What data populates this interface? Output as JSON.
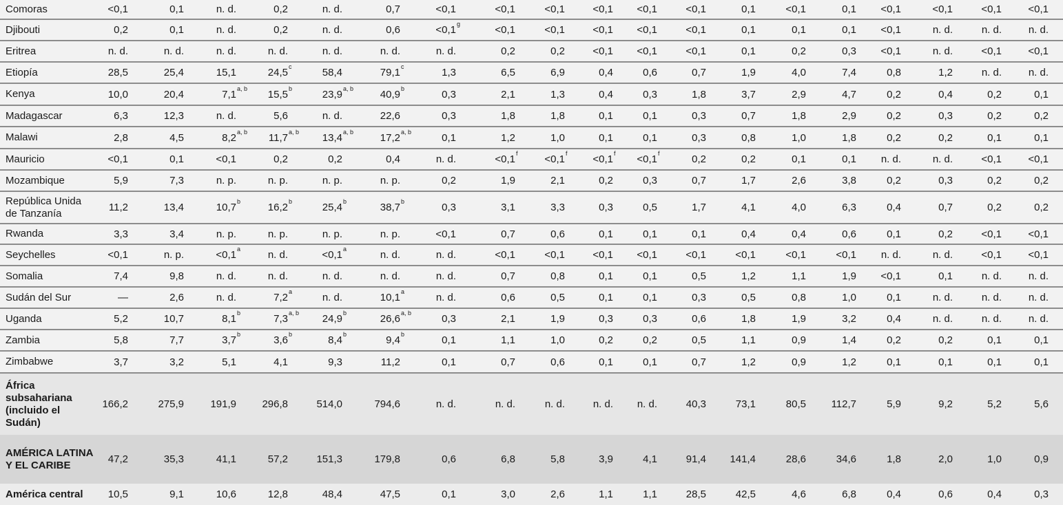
{
  "rows": [
    {
      "label": "Comoras",
      "cells": [
        "<0,1",
        "0,1",
        "n. d.",
        "0,2",
        "n. d.",
        "0,7",
        "<0,1",
        "<0,1",
        "<0,1",
        "<0,1",
        "<0,1",
        "<0,1",
        "0,1",
        "<0,1",
        "0,1",
        "<0,1",
        "<0,1",
        "<0,1",
        "<0,1"
      ]
    },
    {
      "label": "Djibouti",
      "cells": [
        "0,2",
        "0,1",
        "n. d.",
        "0,2",
        "n. d.",
        "0,6",
        {
          "v": "<0,1",
          "sup": "g"
        },
        "<0,1",
        "<0,1",
        "<0,1",
        "<0,1",
        "<0,1",
        "0,1",
        "0,1",
        "0,1",
        "<0,1",
        "n. d.",
        "n. d.",
        "n. d."
      ]
    },
    {
      "label": "Eritrea",
      "cells": [
        "n. d.",
        "n. d.",
        "n. d.",
        "n. d.",
        "n. d.",
        "n. d.",
        "n. d.",
        "0,2",
        "0,2",
        "<0,1",
        "<0,1",
        "<0,1",
        "0,1",
        "0,2",
        "0,3",
        "<0,1",
        "n. d.",
        "<0,1",
        "<0,1"
      ]
    },
    {
      "label": "Etiopía",
      "cells": [
        "28,5",
        "25,4",
        "15,1",
        {
          "v": "24,5",
          "sup": "c"
        },
        "58,4",
        {
          "v": "79,1",
          "sup": "c"
        },
        "1,3",
        "6,5",
        "6,9",
        "0,4",
        "0,6",
        "0,7",
        "1,9",
        "4,0",
        "7,4",
        "0,8",
        "1,2",
        "n. d.",
        "n. d."
      ]
    },
    {
      "label": "Kenya",
      "cells": [
        "10,0",
        "20,4",
        {
          "v": "7,1",
          "sup": "a, b"
        },
        {
          "v": "15,5",
          "sup": "b"
        },
        {
          "v": "23,9",
          "sup": "a, b"
        },
        {
          "v": "40,9",
          "sup": "b"
        },
        "0,3",
        "2,1",
        "1,3",
        "0,4",
        "0,3",
        "1,8",
        "3,7",
        "2,9",
        "4,7",
        "0,2",
        "0,4",
        "0,2",
        "0,1"
      ]
    },
    {
      "label": "Madagascar",
      "cells": [
        "6,3",
        "12,3",
        "n. d.",
        "5,6",
        "n. d.",
        "22,6",
        "0,3",
        "1,8",
        "1,8",
        "0,1",
        "0,1",
        "0,3",
        "0,7",
        "1,8",
        "2,9",
        "0,2",
        "0,3",
        "0,2",
        "0,2"
      ]
    },
    {
      "label": "Malawi",
      "cells": [
        "2,8",
        "4,5",
        {
          "v": "8,2",
          "sup": "a, b"
        },
        {
          "v": "11,7",
          "sup": "a, b"
        },
        {
          "v": "13,4",
          "sup": "a, b"
        },
        {
          "v": "17,2",
          "sup": "a, b"
        },
        "0,1",
        "1,2",
        "1,0",
        "0,1",
        "0,1",
        "0,3",
        "0,8",
        "1,0",
        "1,8",
        "0,2",
        "0,2",
        "0,1",
        "0,1"
      ]
    },
    {
      "label": "Mauricio",
      "cells": [
        "<0,1",
        "0,1",
        "<0,1",
        "0,2",
        "0,2",
        "0,4",
        "n. d.",
        {
          "v": "<0,1",
          "sup": "f"
        },
        {
          "v": "<0,1",
          "sup": "f"
        },
        {
          "v": "<0,1",
          "sup": "f"
        },
        {
          "v": "<0,1",
          "sup": "f"
        },
        "0,2",
        "0,2",
        "0,1",
        "0,1",
        "n. d.",
        "n. d.",
        "<0,1",
        "<0,1"
      ]
    },
    {
      "label": "Mozambique",
      "cells": [
        "5,9",
        "7,3",
        "n. p.",
        "n. p.",
        "n. p.",
        "n. p.",
        "0,2",
        "1,9",
        "2,1",
        "0,2",
        "0,3",
        "0,7",
        "1,7",
        "2,6",
        "3,8",
        "0,2",
        "0,3",
        "0,2",
        "0,2"
      ]
    },
    {
      "label": "República Unida de Tanzanía",
      "cells": [
        "11,2",
        "13,4",
        {
          "v": "10,7",
          "sup": "b"
        },
        {
          "v": "16,2",
          "sup": "b"
        },
        {
          "v": "25,4",
          "sup": "b"
        },
        {
          "v": "38,7",
          "sup": "b"
        },
        "0,3",
        "3,1",
        "3,3",
        "0,3",
        "0,5",
        "1,7",
        "4,1",
        "4,0",
        "6,3",
        "0,4",
        "0,7",
        "0,2",
        "0,2"
      ]
    },
    {
      "label": "Rwanda",
      "cells": [
        "3,3",
        "3,4",
        "n. p.",
        "n. p.",
        "n. p.",
        "n. p.",
        "<0,1",
        "0,7",
        "0,6",
        "0,1",
        "0,1",
        "0,1",
        "0,4",
        "0,4",
        "0,6",
        "0,1",
        "0,2",
        "<0,1",
        "<0,1"
      ]
    },
    {
      "label": "Seychelles",
      "cells": [
        "<0,1",
        "n. p.",
        {
          "v": "<0,1",
          "sup": "a"
        },
        "n. d.",
        {
          "v": "<0,1",
          "sup": "a"
        },
        "n. d.",
        "n. d.",
        "<0,1",
        "<0,1",
        "<0,1",
        "<0,1",
        "<0,1",
        "<0,1",
        "<0,1",
        "<0,1",
        "n. d.",
        "n. d.",
        "<0,1",
        "<0,1"
      ]
    },
    {
      "label": "Somalia",
      "cells": [
        "7,4",
        "9,8",
        "n. d.",
        "n. d.",
        "n. d.",
        "n. d.",
        "n. d.",
        "0,7",
        "0,8",
        "0,1",
        "0,1",
        "0,5",
        "1,2",
        "1,1",
        "1,9",
        "<0,1",
        "0,1",
        "n. d.",
        "n. d."
      ]
    },
    {
      "label": "Sudán del Sur",
      "cells": [
        "—",
        "2,6",
        "n. d.",
        {
          "v": "7,2",
          "sup": "a"
        },
        "n. d.",
        {
          "v": "10,1",
          "sup": "a"
        },
        "n. d.",
        "0,6",
        "0,5",
        "0,1",
        "0,1",
        "0,3",
        "0,5",
        "0,8",
        "1,0",
        "0,1",
        "n. d.",
        "n. d.",
        "n. d."
      ]
    },
    {
      "label": "Uganda",
      "cells": [
        "5,2",
        "10,7",
        {
          "v": "8,1",
          "sup": "b"
        },
        {
          "v": "7,3",
          "sup": "a, b"
        },
        {
          "v": "24,9",
          "sup": "b"
        },
        {
          "v": "26,6",
          "sup": "a, b"
        },
        "0,3",
        "2,1",
        "1,9",
        "0,3",
        "0,3",
        "0,6",
        "1,8",
        "1,9",
        "3,2",
        "0,4",
        "n. d.",
        "n. d.",
        "n. d."
      ]
    },
    {
      "label": "Zambia",
      "cells": [
        "5,8",
        "7,7",
        {
          "v": "3,7",
          "sup": "b"
        },
        {
          "v": "3,6",
          "sup": "b"
        },
        {
          "v": "8,4",
          "sup": "b"
        },
        {
          "v": "9,4",
          "sup": "b"
        },
        "0,1",
        "1,1",
        "1,0",
        "0,2",
        "0,2",
        "0,5",
        "1,1",
        "0,9",
        "1,4",
        "0,2",
        "0,2",
        "0,1",
        "0,1"
      ]
    },
    {
      "label": "Zimbabwe",
      "cells": [
        "3,7",
        "3,2",
        "5,1",
        "4,1",
        "9,3",
        "11,2",
        "0,1",
        "0,7",
        "0,6",
        "0,1",
        "0,1",
        "0,7",
        "1,2",
        "0,9",
        "1,2",
        "0,1",
        "0,1",
        "0,1",
        "0,1"
      ]
    },
    {
      "label": "África subsahariana (incluido el Sudán)",
      "cells": [
        "166,2",
        "275,9",
        "191,9",
        "296,8",
        "514,0",
        "794,6",
        "n. d.",
        "n. d.",
        "n. d.",
        "n. d.",
        "n. d.",
        "40,3",
        "73,1",
        "80,5",
        "112,7",
        "5,9",
        "9,2",
        "5,2",
        "5,6"
      ]
    },
    {
      "label": "AMÉRICA LATINA Y EL CARIBE",
      "cells": [
        "47,2",
        "35,3",
        "41,1",
        "57,2",
        "151,3",
        "179,8",
        "0,6",
        "6,8",
        "5,8",
        "3,9",
        "4,1",
        "91,4",
        "141,4",
        "28,6",
        "34,6",
        "1,8",
        "2,0",
        "1,0",
        "0,9"
      ]
    },
    {
      "label": "América central",
      "cells": [
        "10,5",
        "9,1",
        "10,6",
        "12,8",
        "48,4",
        "47,5",
        "0,1",
        "3,0",
        "2,6",
        "1,1",
        "1,1",
        "28,5",
        "42,5",
        "4,6",
        "6,8",
        "0,4",
        "0,6",
        "0,4",
        "0,3"
      ]
    }
  ]
}
